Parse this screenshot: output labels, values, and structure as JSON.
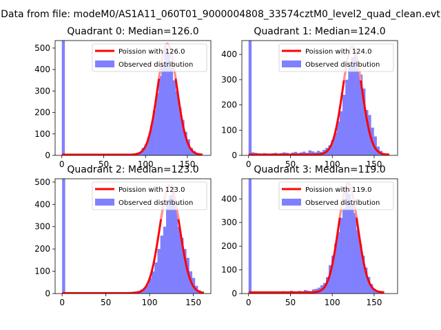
{
  "figure": {
    "suptitle": "Data from file: modeM0/AS1A11_060T01_9000004808_33574cztM0_level2_quad_clean.evt"
  },
  "chart_data": [
    {
      "type": "bar",
      "title": "Quadrant 0: Median=126.0",
      "median": 126.0,
      "xlim": [
        -8,
        178
      ],
      "ylim": [
        0,
        535
      ],
      "xticks": [
        0,
        50,
        100,
        150
      ],
      "yticks": [
        0,
        100,
        200,
        300,
        400,
        500
      ],
      "xlabel": "",
      "ylabel": "",
      "legend": {
        "placement": "top-right",
        "fit_label": "Poission with 126.0",
        "hist_label": "Observed distribution"
      },
      "bin_width": 3.4,
      "bins": [
        [
          0,
          535
        ],
        [
          3.4,
          3
        ],
        [
          6.8,
          3
        ],
        [
          10.2,
          3
        ],
        [
          13.6,
          2
        ],
        [
          17,
          3
        ],
        [
          20.4,
          2
        ],
        [
          23.8,
          3
        ],
        [
          27.2,
          3
        ],
        [
          30.6,
          3
        ],
        [
          34,
          2
        ],
        [
          37.4,
          3
        ],
        [
          40.8,
          2
        ],
        [
          44.2,
          3
        ],
        [
          47.6,
          3
        ],
        [
          51,
          3
        ],
        [
          54.4,
          2
        ],
        [
          57.8,
          3
        ],
        [
          61.2,
          3
        ],
        [
          64.6,
          2
        ],
        [
          68,
          3
        ],
        [
          71.4,
          3
        ],
        [
          74.8,
          3
        ],
        [
          78.2,
          4
        ],
        [
          81.6,
          6
        ],
        [
          85,
          8
        ],
        [
          88.4,
          12
        ],
        [
          91.8,
          16
        ],
        [
          95.2,
          35
        ],
        [
          98.6,
          50
        ],
        [
          102,
          85
        ],
        [
          105.4,
          140
        ],
        [
          108.8,
          210
        ],
        [
          112.2,
          290
        ],
        [
          115.6,
          370
        ],
        [
          119,
          420
        ],
        [
          122.4,
          490
        ],
        [
          125.8,
          475
        ],
        [
          129.2,
          410
        ],
        [
          132.6,
          350
        ],
        [
          136,
          300
        ],
        [
          139.4,
          220
        ],
        [
          142.8,
          165
        ],
        [
          146.2,
          110
        ],
        [
          149.6,
          75
        ],
        [
          153,
          35
        ],
        [
          156.4,
          20
        ],
        [
          159.8,
          8
        ],
        [
          163.2,
          4
        ],
        [
          166.6,
          1
        ]
      ],
      "fit_curve": {
        "mean": 126,
        "peak": 520,
        "sigma": 11.5,
        "baseline": 3,
        "x_range": [
          0,
          168
        ]
      }
    },
    {
      "type": "bar",
      "title": "Quadrant 1: Median=124.0",
      "median": 124.0,
      "xlim": [
        -8,
        178
      ],
      "ylim": [
        0,
        455
      ],
      "xticks": [
        0,
        50,
        100,
        150
      ],
      "yticks": [
        0,
        100,
        200,
        300,
        400
      ],
      "xlabel": "",
      "ylabel": "",
      "legend": {
        "placement": "top-right",
        "fit_label": "Poission with 124.0",
        "hist_label": "Observed distribution"
      },
      "bin_width": 3.4,
      "bins": [
        [
          0,
          455
        ],
        [
          3.4,
          12
        ],
        [
          6.8,
          10
        ],
        [
          10.2,
          8
        ],
        [
          13.6,
          6
        ],
        [
          17,
          9
        ],
        [
          20.4,
          7
        ],
        [
          23.8,
          5
        ],
        [
          27.2,
          8
        ],
        [
          30.6,
          10
        ],
        [
          34,
          7
        ],
        [
          37.4,
          9
        ],
        [
          40.8,
          12
        ],
        [
          44.2,
          10
        ],
        [
          47.6,
          6
        ],
        [
          51,
          11
        ],
        [
          54.4,
          14
        ],
        [
          57.8,
          9
        ],
        [
          61.2,
          12
        ],
        [
          64.6,
          15
        ],
        [
          68,
          10
        ],
        [
          71.4,
          20
        ],
        [
          74.8,
          16
        ],
        [
          78.2,
          12
        ],
        [
          81.6,
          18
        ],
        [
          85,
          14
        ],
        [
          88.4,
          22
        ],
        [
          91.8,
          30
        ],
        [
          95.2,
          40
        ],
        [
          98.6,
          60
        ],
        [
          102,
          90
        ],
        [
          105.4,
          135
        ],
        [
          108.8,
          175
        ],
        [
          112.2,
          240
        ],
        [
          115.6,
          300
        ],
        [
          119,
          360
        ],
        [
          122.4,
          390
        ],
        [
          125.8,
          420
        ],
        [
          129.2,
          350
        ],
        [
          132.6,
          320
        ],
        [
          136,
          265
        ],
        [
          139.4,
          180
        ],
        [
          142.8,
          160
        ],
        [
          146.2,
          110
        ],
        [
          149.6,
          75
        ],
        [
          153,
          35
        ],
        [
          156.4,
          18
        ],
        [
          159.8,
          8
        ],
        [
          163.2,
          3
        ],
        [
          166.6,
          1
        ]
      ],
      "fit_curve": {
        "mean": 124,
        "peak": 432,
        "sigma": 11.5,
        "baseline": 3,
        "x_range": [
          0,
          168
        ]
      }
    },
    {
      "type": "bar",
      "title": "Quadrant 2: Median=123.0",
      "median": 123.0,
      "xlim": [
        -8,
        170
      ],
      "ylim": [
        0,
        515
      ],
      "xticks": [
        0,
        50,
        100,
        150
      ],
      "yticks": [
        0,
        100,
        200,
        300,
        400,
        500
      ],
      "xlabel": "",
      "ylabel": "",
      "legend": {
        "placement": "top-right",
        "fit_label": "Poission with 123.0",
        "hist_label": "Observed distribution"
      },
      "bin_width": 3.3,
      "bins": [
        [
          0,
          515
        ],
        [
          3.3,
          2
        ],
        [
          6.6,
          2
        ],
        [
          9.9,
          2
        ],
        [
          13.2,
          2
        ],
        [
          16.5,
          2
        ],
        [
          19.8,
          2
        ],
        [
          23.1,
          2
        ],
        [
          26.4,
          2
        ],
        [
          29.7,
          2
        ],
        [
          33,
          2
        ],
        [
          36.3,
          2
        ],
        [
          39.6,
          2
        ],
        [
          42.9,
          2
        ],
        [
          46.2,
          2
        ],
        [
          49.5,
          2
        ],
        [
          52.8,
          2
        ],
        [
          56.1,
          2
        ],
        [
          59.4,
          2
        ],
        [
          62.7,
          2
        ],
        [
          66,
          2
        ],
        [
          69.3,
          3
        ],
        [
          72.6,
          4
        ],
        [
          75.9,
          6
        ],
        [
          79.2,
          8
        ],
        [
          82.5,
          10
        ],
        [
          85.8,
          12
        ],
        [
          89.1,
          18
        ],
        [
          92.4,
          25
        ],
        [
          95.7,
          40
        ],
        [
          99,
          70
        ],
        [
          102.3,
          100
        ],
        [
          105.6,
          140
        ],
        [
          108.9,
          200
        ],
        [
          112.2,
          260
        ],
        [
          115.5,
          300
        ],
        [
          118.8,
          420
        ],
        [
          122.1,
          440
        ],
        [
          125.4,
          480
        ],
        [
          128.7,
          410
        ],
        [
          132,
          300
        ],
        [
          135.3,
          250
        ],
        [
          138.6,
          200
        ],
        [
          141.9,
          160
        ],
        [
          145.2,
          100
        ],
        [
          148.5,
          70
        ],
        [
          151.8,
          35
        ],
        [
          155.1,
          15
        ],
        [
          158.4,
          5
        ],
        [
          161.7,
          1
        ]
      ],
      "fit_curve": {
        "mean": 123,
        "peak": 485,
        "sigma": 11.5,
        "baseline": 2,
        "x_range": [
          0,
          162
        ]
      }
    },
    {
      "type": "bar",
      "title": "Quadrant 3: Median=119.0",
      "median": 119.0,
      "xlim": [
        -8,
        178
      ],
      "ylim": [
        0,
        485
      ],
      "xticks": [
        0,
        50,
        100,
        150
      ],
      "yticks": [
        0,
        100,
        200,
        300,
        400
      ],
      "xlabel": "",
      "ylabel": "",
      "legend": {
        "placement": "top-right",
        "fit_label": "Poission with 119.0",
        "hist_label": "Observed distribution"
      },
      "bin_width": 3.3,
      "bins": [
        [
          0,
          485
        ],
        [
          3.3,
          5
        ],
        [
          6.6,
          4
        ],
        [
          9.9,
          3
        ],
        [
          13.2,
          5
        ],
        [
          16.5,
          4
        ],
        [
          19.8,
          3
        ],
        [
          23.1,
          6
        ],
        [
          26.4,
          4
        ],
        [
          29.7,
          5
        ],
        [
          33,
          7
        ],
        [
          36.3,
          6
        ],
        [
          39.6,
          10
        ],
        [
          42.9,
          8
        ],
        [
          46.2,
          6
        ],
        [
          49.5,
          12
        ],
        [
          52.8,
          9
        ],
        [
          56.1,
          7
        ],
        [
          59.4,
          11
        ],
        [
          62.7,
          8
        ],
        [
          66,
          15
        ],
        [
          69.3,
          12
        ],
        [
          72.6,
          10
        ],
        [
          75.9,
          18
        ],
        [
          79.2,
          20
        ],
        [
          82.5,
          25
        ],
        [
          85.8,
          35
        ],
        [
          89.1,
          45
        ],
        [
          92.4,
          70
        ],
        [
          95.7,
          120
        ],
        [
          99,
          160
        ],
        [
          102.3,
          210
        ],
        [
          105.6,
          260
        ],
        [
          108.9,
          320
        ],
        [
          112.2,
          360
        ],
        [
          115.5,
          440
        ],
        [
          118.8,
          420
        ],
        [
          122.1,
          380
        ],
        [
          125.4,
          340
        ],
        [
          128.7,
          270
        ],
        [
          132,
          210
        ],
        [
          135.3,
          160
        ],
        [
          138.6,
          110
        ],
        [
          141.9,
          70
        ],
        [
          145.2,
          40
        ],
        [
          148.5,
          20
        ],
        [
          151.8,
          10
        ],
        [
          155.1,
          5
        ],
        [
          158.4,
          2
        ],
        [
          161.7,
          1
        ]
      ],
      "fit_curve": {
        "mean": 119,
        "peak": 465,
        "sigma": 11.5,
        "baseline": 5,
        "x_range": [
          0,
          162
        ]
      }
    }
  ],
  "colors": {
    "hist": "#8080ff",
    "fit_line": "#ff0000",
    "fit_peak": "#ffa0a0",
    "axes": "#000000",
    "legend_border": "#cccccc"
  }
}
